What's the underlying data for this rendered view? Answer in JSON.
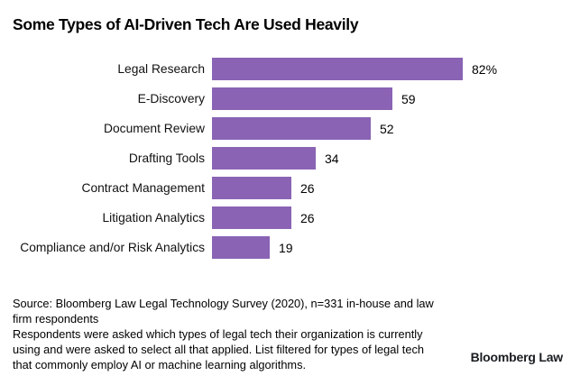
{
  "chart_data": {
    "type": "bar",
    "orientation": "horizontal",
    "title": "Some Types of AI-Driven Tech Are Used Heavily",
    "categories": [
      "Legal Research",
      "E-Discovery",
      "Document Review",
      "Drafting Tools",
      "Contract Management",
      "Litigation Analytics",
      "Compliance and/or Risk Analytics"
    ],
    "values": [
      82,
      59,
      52,
      34,
      26,
      26,
      19
    ],
    "value_labels": [
      "82%",
      "59",
      "52",
      "34",
      "26",
      "26",
      "19"
    ],
    "unit": "percent of respondents",
    "xlim": [
      0,
      100
    ],
    "grid": false,
    "axes_shown": false,
    "bar_color": "#8a63b4",
    "legend": null
  },
  "footer": {
    "lines": [
      "Source: Bloomberg Law Legal Technology Survey (2020), n=331 in-house and law",
      "firm respondents",
      "Respondents were asked which types of legal tech their organization is currently",
      "using and were asked to select all that applied. List filtered for types of legal tech",
      "that commonly employ AI or machine learning algorithms."
    ]
  },
  "branding": {
    "logo_text": "Bloomberg Law"
  }
}
